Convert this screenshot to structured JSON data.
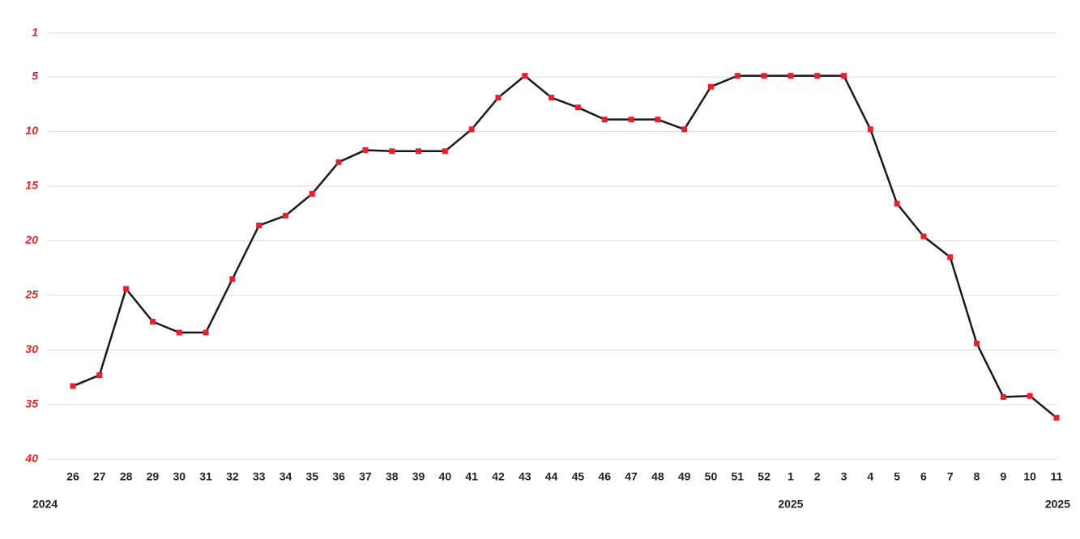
{
  "chart_data": {
    "type": "line",
    "categories": [
      "26",
      "27",
      "28",
      "29",
      "30",
      "31",
      "32",
      "33",
      "34",
      "35",
      "36",
      "37",
      "38",
      "39",
      "40",
      "41",
      "42",
      "43",
      "44",
      "45",
      "46",
      "47",
      "48",
      "49",
      "50",
      "51",
      "52",
      "1",
      "2",
      "3",
      "4",
      "5",
      "6",
      "7",
      "8",
      "9",
      "10",
      "11"
    ],
    "year_labels": [
      "2024",
      null,
      null,
      null,
      null,
      null,
      null,
      null,
      null,
      null,
      null,
      null,
      null,
      null,
      null,
      null,
      null,
      null,
      null,
      null,
      null,
      null,
      null,
      null,
      null,
      null,
      null,
      "2025",
      null,
      null,
      null,
      null,
      null,
      null,
      null,
      null,
      null,
      "2025"
    ],
    "series": [
      {
        "color": "#1a1a1a",
        "marker_color": "#e8202a",
        "values": [
          33.3,
          32.3,
          24.4,
          27.4,
          28.4,
          28.4,
          23.5,
          18.6,
          17.7,
          15.7,
          12.8,
          11.7,
          11.8,
          11.8,
          11.8,
          9.8,
          6.9,
          4.9,
          6.9,
          7.8,
          8.9,
          8.9,
          8.9,
          9.8,
          5.9,
          4.9,
          4.9,
          4.9,
          4.9,
          4.9,
          9.8,
          16.6,
          19.6,
          21.5,
          29.4,
          34.3,
          34.2,
          36.2
        ]
      }
    ],
    "ylim": [
      1,
      40
    ],
    "y_inverted": true,
    "yticks": [
      1,
      5,
      10,
      15,
      20,
      25,
      30,
      35,
      40
    ],
    "grid": true
  }
}
